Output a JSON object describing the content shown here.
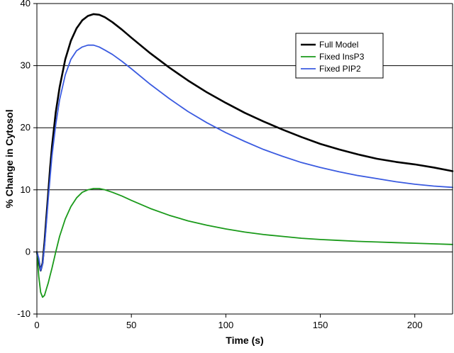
{
  "chart_data": {
    "type": "line",
    "title": "",
    "xlabel": "Time (s)",
    "ylabel": "% Change in Cytosol",
    "xlim": [
      0,
      220
    ],
    "ylim": [
      -10,
      40
    ],
    "x_ticks": [
      0,
      50,
      100,
      150,
      200
    ],
    "y_ticks": [
      -10,
      0,
      10,
      20,
      30,
      40
    ],
    "grid": "horizontal",
    "legend_position": "top-right",
    "series": [
      {
        "name": "Full Model",
        "color": "#000000",
        "points": [
          [
            0,
            0
          ],
          [
            1,
            -1.5
          ],
          [
            2,
            -3.0
          ],
          [
            3,
            -1.8
          ],
          [
            4,
            1.5
          ],
          [
            5,
            5.5
          ],
          [
            6,
            9.5
          ],
          [
            7,
            13.5
          ],
          [
            8,
            17
          ],
          [
            10,
            22.5
          ],
          [
            12,
            26.5
          ],
          [
            15,
            31
          ],
          [
            18,
            34
          ],
          [
            21,
            36
          ],
          [
            24,
            37.3
          ],
          [
            27,
            38
          ],
          [
            30,
            38.3
          ],
          [
            33,
            38.2
          ],
          [
            36,
            37.8
          ],
          [
            40,
            37
          ],
          [
            45,
            35.8
          ],
          [
            50,
            34.5
          ],
          [
            60,
            32
          ],
          [
            70,
            29.7
          ],
          [
            80,
            27.6
          ],
          [
            90,
            25.7
          ],
          [
            100,
            24
          ],
          [
            110,
            22.4
          ],
          [
            120,
            21
          ],
          [
            130,
            19.7
          ],
          [
            140,
            18.5
          ],
          [
            150,
            17.4
          ],
          [
            160,
            16.5
          ],
          [
            170,
            15.7
          ],
          [
            180,
            15
          ],
          [
            190,
            14.5
          ],
          [
            200,
            14.1
          ],
          [
            210,
            13.6
          ],
          [
            220,
            13.0
          ]
        ]
      },
      {
        "name": "Fixed InsP3",
        "color": "#1a9a1a",
        "points": [
          [
            0,
            0
          ],
          [
            1,
            -4
          ],
          [
            2,
            -6.5
          ],
          [
            3,
            -7.3
          ],
          [
            4,
            -7
          ],
          [
            5,
            -6
          ],
          [
            6,
            -5
          ],
          [
            7,
            -3.8
          ],
          [
            8,
            -2.6
          ],
          [
            10,
            0
          ],
          [
            12,
            2.5
          ],
          [
            15,
            5.3
          ],
          [
            18,
            7.3
          ],
          [
            21,
            8.7
          ],
          [
            24,
            9.6
          ],
          [
            27,
            10
          ],
          [
            30,
            10.2
          ],
          [
            33,
            10.2
          ],
          [
            36,
            10
          ],
          [
            40,
            9.6
          ],
          [
            45,
            9
          ],
          [
            50,
            8.3
          ],
          [
            60,
            7
          ],
          [
            70,
            5.9
          ],
          [
            80,
            5
          ],
          [
            90,
            4.3
          ],
          [
            100,
            3.7
          ],
          [
            110,
            3.2
          ],
          [
            120,
            2.8
          ],
          [
            130,
            2.5
          ],
          [
            140,
            2.2
          ],
          [
            150,
            2
          ],
          [
            160,
            1.85
          ],
          [
            170,
            1.7
          ],
          [
            180,
            1.6
          ],
          [
            190,
            1.5
          ],
          [
            200,
            1.4
          ],
          [
            210,
            1.3
          ],
          [
            220,
            1.2
          ]
        ]
      },
      {
        "name": "Fixed PIP2",
        "color": "#3b5be0",
        "points": [
          [
            0,
            0
          ],
          [
            1,
            -1
          ],
          [
            2,
            -3
          ],
          [
            3,
            -2
          ],
          [
            4,
            0.8
          ],
          [
            5,
            4.5
          ],
          [
            6,
            8.5
          ],
          [
            7,
            12
          ],
          [
            8,
            15.5
          ],
          [
            10,
            20.5
          ],
          [
            12,
            24.5
          ],
          [
            15,
            28.5
          ],
          [
            18,
            31
          ],
          [
            21,
            32.4
          ],
          [
            24,
            33
          ],
          [
            27,
            33.3
          ],
          [
            30,
            33.3
          ],
          [
            33,
            33
          ],
          [
            36,
            32.5
          ],
          [
            40,
            31.8
          ],
          [
            45,
            30.7
          ],
          [
            50,
            29.5
          ],
          [
            60,
            27
          ],
          [
            70,
            24.7
          ],
          [
            80,
            22.6
          ],
          [
            90,
            20.8
          ],
          [
            100,
            19.2
          ],
          [
            110,
            17.8
          ],
          [
            120,
            16.5
          ],
          [
            130,
            15.4
          ],
          [
            140,
            14.4
          ],
          [
            150,
            13.6
          ],
          [
            160,
            12.9
          ],
          [
            170,
            12.3
          ],
          [
            180,
            11.8
          ],
          [
            190,
            11.3
          ],
          [
            200,
            10.9
          ],
          [
            210,
            10.6
          ],
          [
            220,
            10.4
          ]
        ]
      }
    ]
  }
}
